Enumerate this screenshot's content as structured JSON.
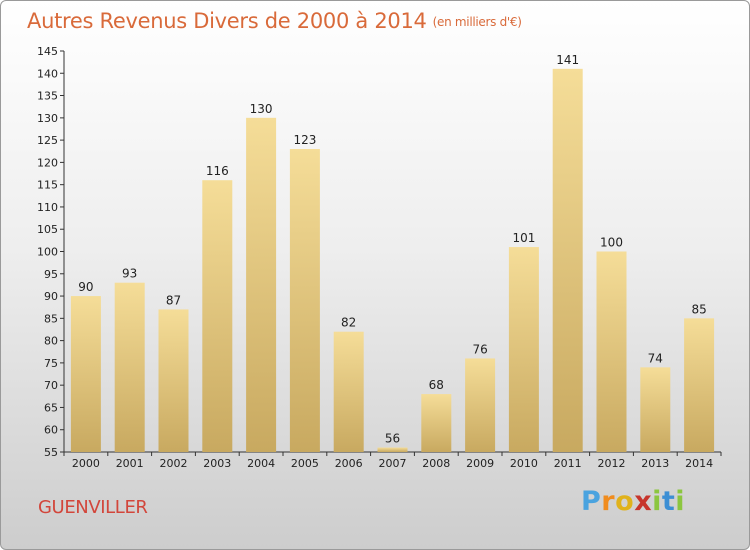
{
  "title": "Autres Revenus Divers de 2000 à 2014",
  "subtitle": "(en milliers d'€)",
  "commune": "GUENVILLER",
  "logo_letters": [
    "P",
    "r",
    "o",
    "x",
    "i",
    "t",
    "i"
  ],
  "colors": {
    "bar_light": "#f5dd98",
    "bar_dark": "#c8a960",
    "title": "#d96a3a",
    "commune": "#d2463b"
  },
  "chart_data": {
    "type": "bar",
    "title": "Autres Revenus Divers de 2000 à 2014",
    "subtitle": "(en milliers d'€)",
    "categories": [
      "2000",
      "2001",
      "2002",
      "2003",
      "2004",
      "2005",
      "2006",
      "2007",
      "2008",
      "2009",
      "2010",
      "2011",
      "2012",
      "2013",
      "2014"
    ],
    "values": [
      90,
      93,
      87,
      116,
      130,
      123,
      82,
      56,
      68,
      76,
      101,
      141,
      100,
      74,
      85
    ],
    "ylim": [
      55,
      145
    ],
    "yticks": [
      55,
      60,
      65,
      70,
      75,
      80,
      85,
      90,
      95,
      100,
      105,
      110,
      115,
      120,
      125,
      130,
      135,
      140,
      145
    ],
    "grid": false,
    "data_labels": true
  }
}
